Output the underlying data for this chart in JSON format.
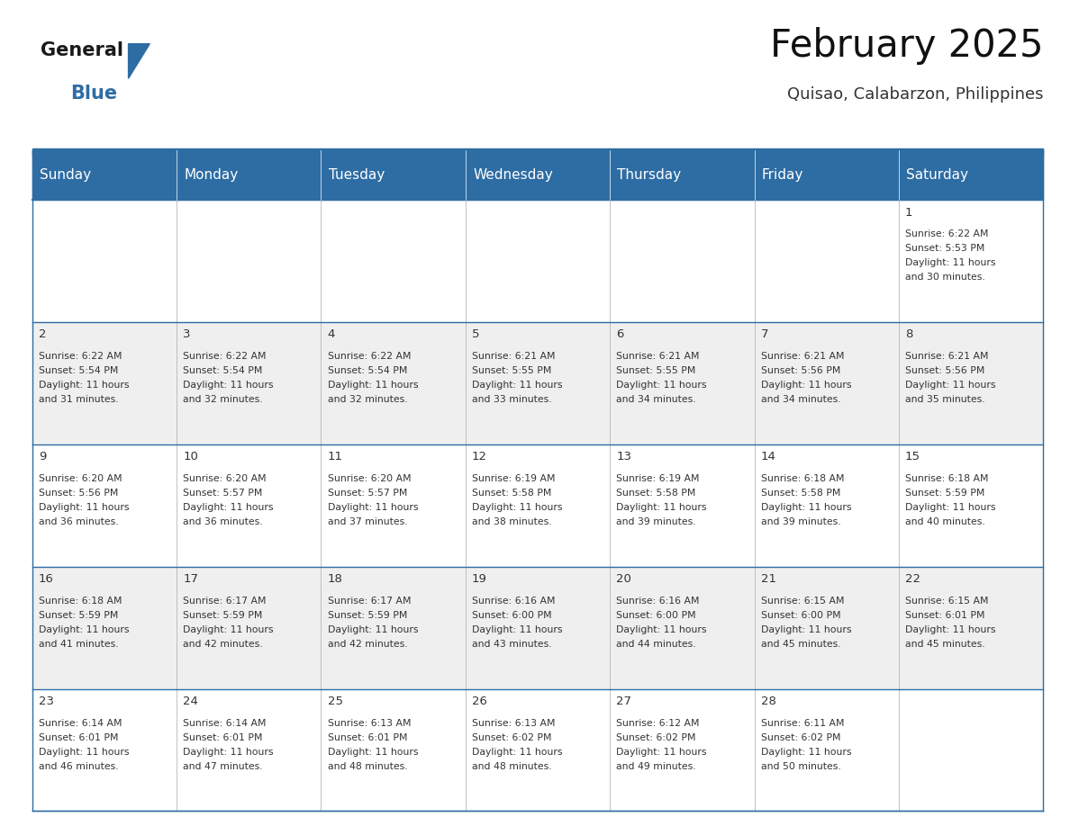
{
  "title": "February 2025",
  "subtitle": "Quisao, Calabarzon, Philippines",
  "header_bg": "#2E6DA4",
  "header_text": "#FFFFFF",
  "cell_bg_light": "#EFEFEF",
  "cell_bg_white": "#FFFFFF",
  "border_color": "#2E6DA4",
  "text_color": "#333333",
  "day_names": [
    "Sunday",
    "Monday",
    "Tuesday",
    "Wednesday",
    "Thursday",
    "Friday",
    "Saturday"
  ],
  "days": [
    {
      "day": 1,
      "col": 6,
      "row": 0,
      "sunrise": "6:22 AM",
      "sunset": "5:53 PM",
      "daylight": "11 hours and 30 minutes."
    },
    {
      "day": 2,
      "col": 0,
      "row": 1,
      "sunrise": "6:22 AM",
      "sunset": "5:54 PM",
      "daylight": "11 hours and 31 minutes."
    },
    {
      "day": 3,
      "col": 1,
      "row": 1,
      "sunrise": "6:22 AM",
      "sunset": "5:54 PM",
      "daylight": "11 hours and 32 minutes."
    },
    {
      "day": 4,
      "col": 2,
      "row": 1,
      "sunrise": "6:22 AM",
      "sunset": "5:54 PM",
      "daylight": "11 hours and 32 minutes."
    },
    {
      "day": 5,
      "col": 3,
      "row": 1,
      "sunrise": "6:21 AM",
      "sunset": "5:55 PM",
      "daylight": "11 hours and 33 minutes."
    },
    {
      "day": 6,
      "col": 4,
      "row": 1,
      "sunrise": "6:21 AM",
      "sunset": "5:55 PM",
      "daylight": "11 hours and 34 minutes."
    },
    {
      "day": 7,
      "col": 5,
      "row": 1,
      "sunrise": "6:21 AM",
      "sunset": "5:56 PM",
      "daylight": "11 hours and 34 minutes."
    },
    {
      "day": 8,
      "col": 6,
      "row": 1,
      "sunrise": "6:21 AM",
      "sunset": "5:56 PM",
      "daylight": "11 hours and 35 minutes."
    },
    {
      "day": 9,
      "col": 0,
      "row": 2,
      "sunrise": "6:20 AM",
      "sunset": "5:56 PM",
      "daylight": "11 hours and 36 minutes."
    },
    {
      "day": 10,
      "col": 1,
      "row": 2,
      "sunrise": "6:20 AM",
      "sunset": "5:57 PM",
      "daylight": "11 hours and 36 minutes."
    },
    {
      "day": 11,
      "col": 2,
      "row": 2,
      "sunrise": "6:20 AM",
      "sunset": "5:57 PM",
      "daylight": "11 hours and 37 minutes."
    },
    {
      "day": 12,
      "col": 3,
      "row": 2,
      "sunrise": "6:19 AM",
      "sunset": "5:58 PM",
      "daylight": "11 hours and 38 minutes."
    },
    {
      "day": 13,
      "col": 4,
      "row": 2,
      "sunrise": "6:19 AM",
      "sunset": "5:58 PM",
      "daylight": "11 hours and 39 minutes."
    },
    {
      "day": 14,
      "col": 5,
      "row": 2,
      "sunrise": "6:18 AM",
      "sunset": "5:58 PM",
      "daylight": "11 hours and 39 minutes."
    },
    {
      "day": 15,
      "col": 6,
      "row": 2,
      "sunrise": "6:18 AM",
      "sunset": "5:59 PM",
      "daylight": "11 hours and 40 minutes."
    },
    {
      "day": 16,
      "col": 0,
      "row": 3,
      "sunrise": "6:18 AM",
      "sunset": "5:59 PM",
      "daylight": "11 hours and 41 minutes."
    },
    {
      "day": 17,
      "col": 1,
      "row": 3,
      "sunrise": "6:17 AM",
      "sunset": "5:59 PM",
      "daylight": "11 hours and 42 minutes."
    },
    {
      "day": 18,
      "col": 2,
      "row": 3,
      "sunrise": "6:17 AM",
      "sunset": "5:59 PM",
      "daylight": "11 hours and 42 minutes."
    },
    {
      "day": 19,
      "col": 3,
      "row": 3,
      "sunrise": "6:16 AM",
      "sunset": "6:00 PM",
      "daylight": "11 hours and 43 minutes."
    },
    {
      "day": 20,
      "col": 4,
      "row": 3,
      "sunrise": "6:16 AM",
      "sunset": "6:00 PM",
      "daylight": "11 hours and 44 minutes."
    },
    {
      "day": 21,
      "col": 5,
      "row": 3,
      "sunrise": "6:15 AM",
      "sunset": "6:00 PM",
      "daylight": "11 hours and 45 minutes."
    },
    {
      "day": 22,
      "col": 6,
      "row": 3,
      "sunrise": "6:15 AM",
      "sunset": "6:01 PM",
      "daylight": "11 hours and 45 minutes."
    },
    {
      "day": 23,
      "col": 0,
      "row": 4,
      "sunrise": "6:14 AM",
      "sunset": "6:01 PM",
      "daylight": "11 hours and 46 minutes."
    },
    {
      "day": 24,
      "col": 1,
      "row": 4,
      "sunrise": "6:14 AM",
      "sunset": "6:01 PM",
      "daylight": "11 hours and 47 minutes."
    },
    {
      "day": 25,
      "col": 2,
      "row": 4,
      "sunrise": "6:13 AM",
      "sunset": "6:01 PM",
      "daylight": "11 hours and 48 minutes."
    },
    {
      "day": 26,
      "col": 3,
      "row": 4,
      "sunrise": "6:13 AM",
      "sunset": "6:02 PM",
      "daylight": "11 hours and 48 minutes."
    },
    {
      "day": 27,
      "col": 4,
      "row": 4,
      "sunrise": "6:12 AM",
      "sunset": "6:02 PM",
      "daylight": "11 hours and 49 minutes."
    },
    {
      "day": 28,
      "col": 5,
      "row": 4,
      "sunrise": "6:11 AM",
      "sunset": "6:02 PM",
      "daylight": "11 hours and 50 minutes."
    }
  ],
  "num_rows": 5,
  "num_cols": 7,
  "title_fontsize": 30,
  "subtitle_fontsize": 13,
  "header_fontsize": 11,
  "day_num_fontsize": 9.5,
  "cell_text_fontsize": 7.8,
  "logo_text1": "General",
  "logo_text2": "Blue",
  "logo_color1": "#1a1a1a",
  "logo_color2": "#2E6DA4",
  "logo_triangle_color": "#2E6DA4"
}
